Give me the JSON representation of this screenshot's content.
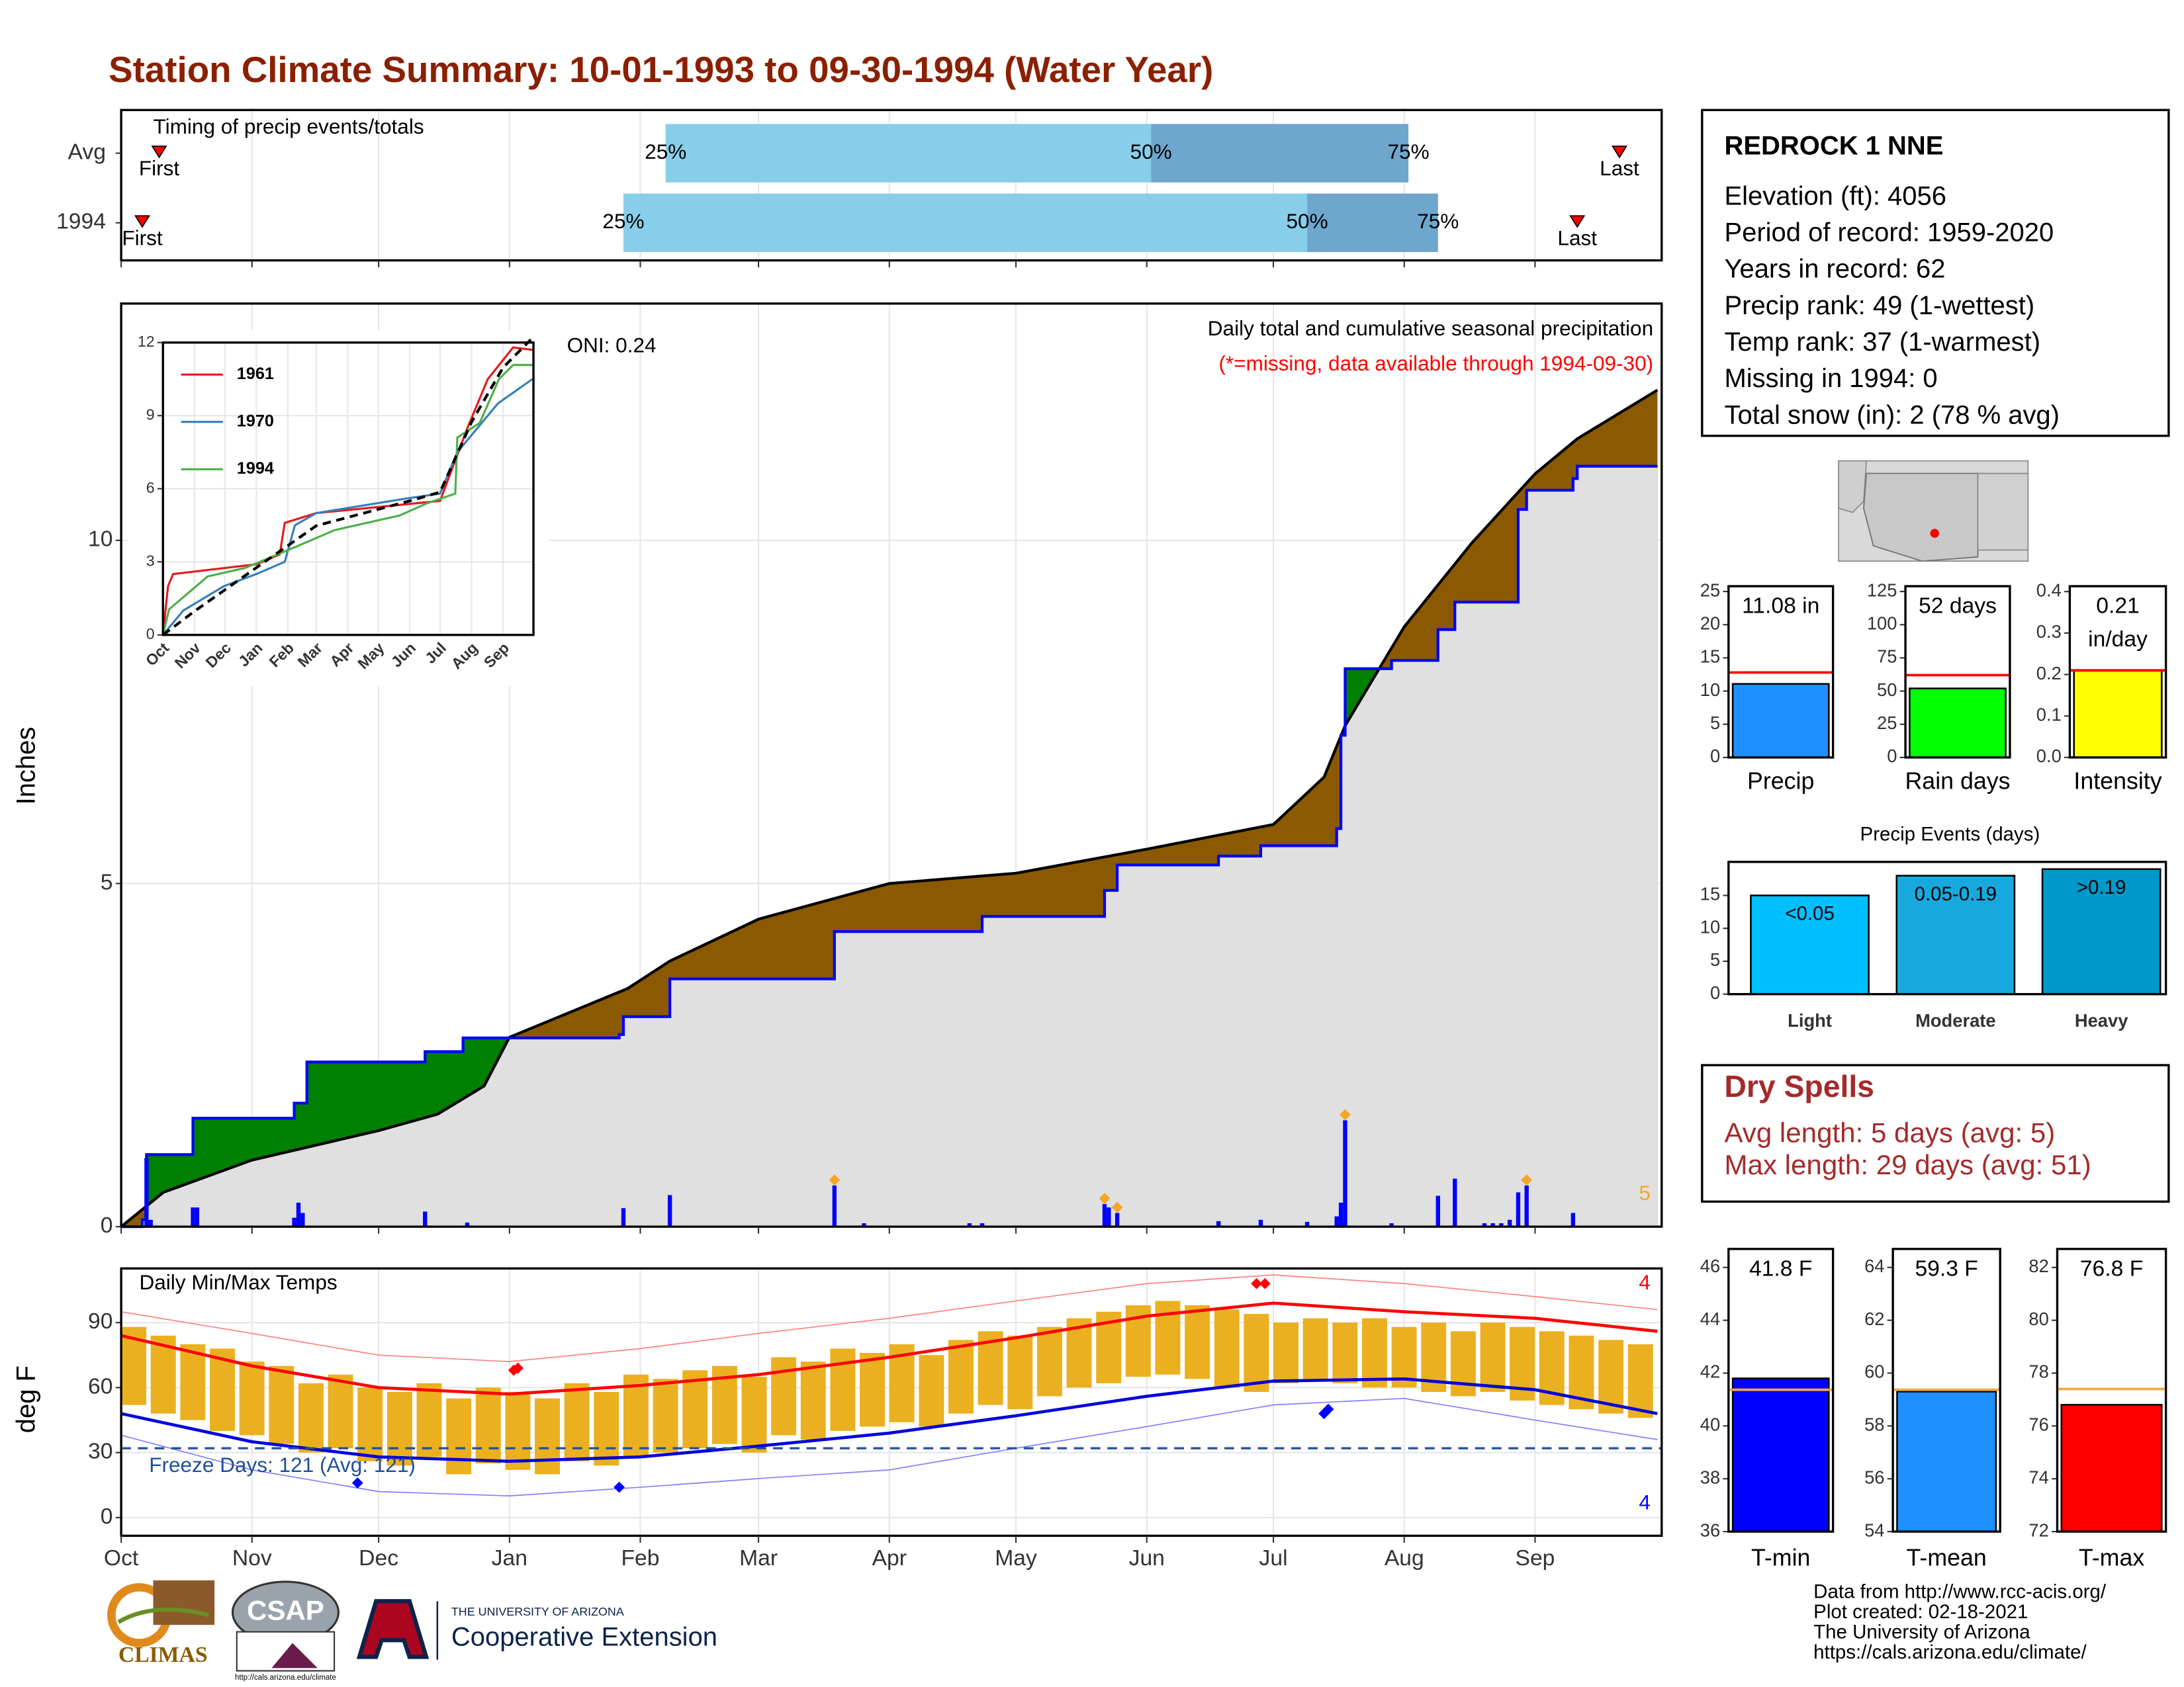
{
  "title": "Station Climate Summary: 10-01-1993 to 09-30-1994 (Water Year)",
  "x_axis": {
    "xlim": [
      0,
      365
    ],
    "xticks": [
      {
        "value": 0,
        "label": "Oct"
      },
      {
        "value": 31,
        "label": "Nov"
      },
      {
        "value": 61,
        "label": "Dec"
      },
      {
        "value": 92,
        "label": "Jan"
      },
      {
        "value": 123,
        "label": "Feb"
      },
      {
        "value": 151,
        "label": "Mar"
      },
      {
        "value": 182,
        "label": "Apr"
      },
      {
        "value": 212,
        "label": "May"
      },
      {
        "value": 243,
        "label": "Jun"
      },
      {
        "value": 273,
        "label": "Jul"
      },
      {
        "value": 304,
        "label": "Aug"
      },
      {
        "value": 335,
        "label": "Sep"
      }
    ]
  },
  "chart_data": [
    {
      "type": "timing",
      "title": "Timing of precip events/totals",
      "categories": [
        "Avg",
        "1994"
      ],
      "point_labels": [
        "First",
        "25%",
        "50%",
        "75%",
        "Last"
      ],
      "values": [
        [
          9,
          129,
          244,
          305,
          355
        ],
        [
          5,
          119,
          281,
          312,
          345
        ]
      ],
      "colors": [
        "#87ceeb",
        "#6ea6cd"
      ]
    },
    {
      "type": "cumulative",
      "ylabel": "Inches",
      "ylim": [
        0,
        13.45
      ],
      "yticks": [
        0,
        5,
        10
      ],
      "title": "Daily total and cumulative seasonal precipitation",
      "subtitle": "(*=missing, data available through 1994-09-30)",
      "annotation": "ONI: 0.24",
      "series": [
        {
          "color": "#000000",
          "x": [
            0,
            10,
            31,
            61,
            75,
            86,
            92,
            120,
            130,
            151,
            182,
            212,
            243,
            273,
            285,
            290,
            304,
            320,
            335,
            345,
            364
          ],
          "values": [
            0,
            0.5,
            0.97,
            1.4,
            1.64,
            2.05,
            2.76,
            3.47,
            3.87,
            4.48,
            5.0,
            5.15,
            5.5,
            5.86,
            6.55,
            7.3,
            8.74,
            9.96,
            10.97,
            11.48,
            12.19
          ]
        },
        {
          "color": "#0000ff",
          "x": [
            0,
            5,
            6,
            17,
            41,
            44,
            72,
            81,
            118,
            119,
            130,
            169,
            204,
            233,
            236,
            260,
            270,
            288,
            289,
            290,
            301,
            312,
            316,
            331,
            333,
            344,
            345,
            364
          ],
          "values": [
            0,
            0.1,
            1.05,
            1.58,
            1.8,
            2.4,
            2.55,
            2.75,
            2.8,
            3.06,
            3.61,
            4.3,
            4.52,
            4.9,
            5.27,
            5.4,
            5.55,
            5.8,
            7.16,
            8.13,
            8.25,
            8.7,
            9.1,
            10.45,
            10.73,
            10.9,
            11.08,
            11.08
          ]
        }
      ],
      "fill_above": "#008000",
      "fill_below": "#8b5a00",
      "fill_base": "#e0e0e0",
      "daily": {
        "color": "#0000ff",
        "x": [
          6,
          7,
          17,
          18,
          41,
          42,
          43,
          72,
          82,
          119,
          130,
          169,
          176,
          201,
          204,
          233,
          234,
          236,
          260,
          270,
          281,
          288,
          289,
          290,
          301,
          312,
          316,
          323,
          325,
          327,
          329,
          331,
          333,
          344
        ],
        "values": [
          1.0,
          0.1,
          0.28,
          0.28,
          0.13,
          0.35,
          0.2,
          0.22,
          0.06,
          0.27,
          0.46,
          0.6,
          0.05,
          0.05,
          0.05,
          0.33,
          0.28,
          0.2,
          0.08,
          0.1,
          0.07,
          0.15,
          0.35,
          1.55,
          0.05,
          0.45,
          0.7,
          0.05,
          0.05,
          0.05,
          0.1,
          0.5,
          0.6,
          0.2
        ]
      },
      "record_days": [
        11,
        15,
        17,
        23,
        32
      ],
      "record_color": "#f5a623",
      "record_count": 5
    },
    {
      "type": "line",
      "ylim": [
        0,
        12
      ],
      "yticks": [
        0,
        3,
        6,
        9,
        12
      ],
      "series": [
        {
          "name": "1961",
          "color": "#e41a1c",
          "x": [
            0,
            5,
            10,
            92,
            115,
            120,
            151,
            273,
            300,
            320,
            345,
            364
          ],
          "values": [
            0,
            2.0,
            2.5,
            2.9,
            3.3,
            4.6,
            5.0,
            5.5,
            8.5,
            10.5,
            11.8,
            11.7
          ]
        },
        {
          "name": "1970",
          "color": "#377eb8",
          "x": [
            0,
            20,
            60,
            92,
            120,
            130,
            151,
            240,
            273,
            290,
            310,
            330,
            364
          ],
          "values": [
            0,
            1.0,
            2.0,
            2.5,
            3.0,
            4.5,
            5.0,
            5.6,
            5.8,
            7.5,
            8.5,
            9.5,
            10.5
          ]
        },
        {
          "name": "1994",
          "color": "#4daf4a",
          "x": [
            0,
            6,
            44,
            81,
            130,
            169,
            233,
            260,
            288,
            290,
            312,
            331,
            345,
            364
          ],
          "values": [
            0,
            1.05,
            2.4,
            2.75,
            3.6,
            4.3,
            4.9,
            5.4,
            5.8,
            8.1,
            8.7,
            10.5,
            11.08,
            11.08
          ]
        },
        {
          "color": "#000000",
          "dash": true,
          "x": [
            0,
            31,
            92,
            151,
            243,
            273,
            304,
            335,
            364
          ],
          "values": [
            0,
            0.97,
            2.76,
            4.48,
            5.5,
            5.86,
            8.74,
            10.97,
            12.19
          ]
        }
      ]
    },
    {
      "type": "temps",
      "title": "Daily Min/Max Temps",
      "ylabel": "deg F",
      "ylim": [
        -8.4,
        115
      ],
      "yticks": [
        0,
        30,
        60,
        90
      ],
      "x": [
        0,
        7,
        14,
        21,
        28,
        35,
        42,
        49,
        56,
        63,
        70,
        77,
        84,
        91,
        98,
        105,
        112,
        119,
        126,
        133,
        140,
        147,
        154,
        161,
        168,
        175,
        182,
        189,
        196,
        203,
        210,
        217,
        224,
        231,
        238,
        245,
        252,
        259,
        266,
        273,
        280,
        287,
        294,
        301,
        308,
        315,
        322,
        329,
        336,
        343,
        350,
        357
      ],
      "max": [
        88,
        84,
        80,
        78,
        72,
        70,
        62,
        66,
        60,
        58,
        62,
        55,
        60,
        58,
        55,
        62,
        58,
        66,
        64,
        68,
        70,
        65,
        74,
        72,
        78,
        76,
        80,
        75,
        82,
        86,
        84,
        88,
        92,
        95,
        98,
        100,
        98,
        96,
        94,
        90,
        92,
        90,
        92,
        88,
        90,
        86,
        90,
        88,
        86,
        84,
        82,
        80
      ],
      "min": [
        52,
        48,
        45,
        40,
        38,
        34,
        30,
        32,
        26,
        24,
        28,
        20,
        25,
        22,
        20,
        26,
        24,
        28,
        30,
        32,
        34,
        30,
        38,
        36,
        40,
        42,
        44,
        42,
        48,
        52,
        50,
        56,
        60,
        62,
        65,
        66,
        64,
        60,
        58,
        62,
        64,
        62,
        60,
        60,
        58,
        56,
        58,
        54,
        52,
        50,
        48,
        46
      ],
      "bar_color": "#ebb020",
      "lines": [
        {
          "color": "#ff8080",
          "width": 0.8,
          "x": [
            0,
            31,
            61,
            92,
            123,
            151,
            182,
            212,
            243,
            273,
            304,
            335,
            364
          ],
          "values": [
            95,
            85,
            75,
            72,
            78,
            85,
            92,
            100,
            108,
            112,
            108,
            102,
            96
          ]
        },
        {
          "color": "#8080ff",
          "width": 0.8,
          "x": [
            0,
            31,
            61,
            92,
            123,
            151,
            182,
            212,
            243,
            273,
            304,
            335,
            364
          ],
          "values": [
            38,
            22,
            12,
            10,
            14,
            18,
            22,
            32,
            42,
            52,
            55,
            45,
            36
          ]
        },
        {
          "color": "#ff0000",
          "width": 2.2,
          "x": [
            0,
            31,
            61,
            92,
            123,
            151,
            182,
            212,
            243,
            273,
            304,
            335,
            364
          ],
          "values": [
            84,
            70,
            60,
            57,
            61,
            66,
            74,
            83,
            93,
            99,
            95,
            92,
            86
          ]
        },
        {
          "color": "#0000dd",
          "width": 2.2,
          "x": [
            0,
            31,
            61,
            92,
            123,
            151,
            182,
            212,
            243,
            273,
            304,
            335,
            364
          ],
          "values": [
            48,
            35,
            28,
            26,
            28,
            33,
            39,
            47,
            56,
            63,
            64,
            59,
            48
          ]
        }
      ],
      "freeze": 32,
      "freeze_color": "#1f4e9c",
      "freeze_label": "Freeze Days: 121 (Avg: 121)",
      "record_highs": {
        "color": "#ff0000",
        "x": [
          93,
          94,
          269,
          271
        ],
        "values": [
          68,
          69,
          108,
          108
        ]
      },
      "record_lows": {
        "color": "#0000ff",
        "x": [
          56,
          118,
          285,
          286
        ],
        "values": [
          16,
          14,
          48,
          50
        ]
      },
      "record_high_count": 4,
      "record_low_count": 4
    },
    {
      "type": "single_bar",
      "label": "Precip",
      "value": 11.08,
      "value_label": [
        "11.08 in"
      ],
      "avg": 12.8,
      "ylim": [
        0,
        25.8
      ],
      "yticks": [
        0,
        5,
        10,
        15,
        20,
        25
      ],
      "color": "#1e90ff",
      "avg_color": "#ff0000"
    },
    {
      "type": "single_bar",
      "label": "Rain days",
      "value": 52,
      "value_label": [
        "52 days"
      ],
      "avg": 62,
      "ylim": [
        0,
        129
      ],
      "yticks": [
        0,
        25,
        50,
        75,
        100,
        125
      ],
      "color": "#00ff00",
      "avg_color": "#ff0000"
    },
    {
      "type": "single_bar",
      "label": "Intensity",
      "value": 0.21,
      "value_label": [
        "0.21",
        "in/day"
      ],
      "avg": 0.21,
      "ylim": [
        0,
        0.413
      ],
      "yticks": [
        {
          "value": 0,
          "label": "0.0"
        },
        0.1,
        0.2,
        0.3,
        0.4
      ],
      "color": "#ffff00",
      "avg_color": "#ff0000"
    },
    {
      "type": "bar",
      "title": "Precip Events (days)",
      "categories": [
        "Light",
        "Moderate",
        "Heavy"
      ],
      "bin_labels": [
        "<0.05",
        "0.05-0.19",
        ">0.19"
      ],
      "values": [
        15,
        18,
        19
      ],
      "ylim": [
        0,
        20.1
      ],
      "yticks": [
        0,
        5,
        10,
        15
      ],
      "colors": [
        "#00bfff",
        "#17a9dd",
        "#0099c9"
      ]
    },
    {
      "type": "single_bar",
      "label": "T-min",
      "value": 41.8,
      "value_label": [
        "41.8 F"
      ],
      "avg": 41.37,
      "ylim": [
        36,
        46.7
      ],
      "yticks": [
        36,
        38,
        40,
        42,
        44,
        46
      ],
      "color": "#0000ff",
      "avg_color": "#f4a742"
    },
    {
      "type": "single_bar",
      "label": "T-mean",
      "value": 59.3,
      "value_label": [
        "59.3 F"
      ],
      "avg": 59.37,
      "ylim": [
        54,
        64.7
      ],
      "yticks": [
        54,
        56,
        58,
        60,
        62,
        64
      ],
      "color": "#1e90ff",
      "avg_color": "#f4a742"
    },
    {
      "type": "single_bar",
      "label": "T-max",
      "value": 76.8,
      "value_label": [
        "76.8 F"
      ],
      "avg": 77.4,
      "ylim": [
        72,
        82.7
      ],
      "yticks": [
        72,
        74,
        76,
        78,
        80,
        82
      ],
      "color": "#ff0000",
      "avg_color": "#f4a742"
    }
  ],
  "station": {
    "name": "REDROCK 1 NNE",
    "lines": [
      "Elevation (ft): 4056",
      "Period of record: 1959-2020",
      "Years in record: 62",
      "Precip rank: 49 (1-wettest)",
      "Temp rank: 37 (1-warmest)",
      "Missing in 1994: 0",
      "Total snow (in): 2 (78 % avg)"
    ]
  },
  "dry_spells": {
    "title": "Dry Spells",
    "lines": [
      "Avg length: 5 days (avg: 5)",
      "Max length: 29 days (avg: 51)"
    ]
  },
  "credits": [
    "Data from http://www.rcc-acis.org/",
    "Plot created: 02-18-2021",
    "The University of Arizona",
    "https://cals.arizona.edu/climate/"
  ],
  "logos": {
    "climas": "CLIMAS",
    "csap": "CSAP",
    "csap_url": "http://cals.arizona.edu/climate",
    "ua_line1": "THE UNIVERSITY OF ARIZONA",
    "ua_line2": "Cooperative Extension"
  }
}
